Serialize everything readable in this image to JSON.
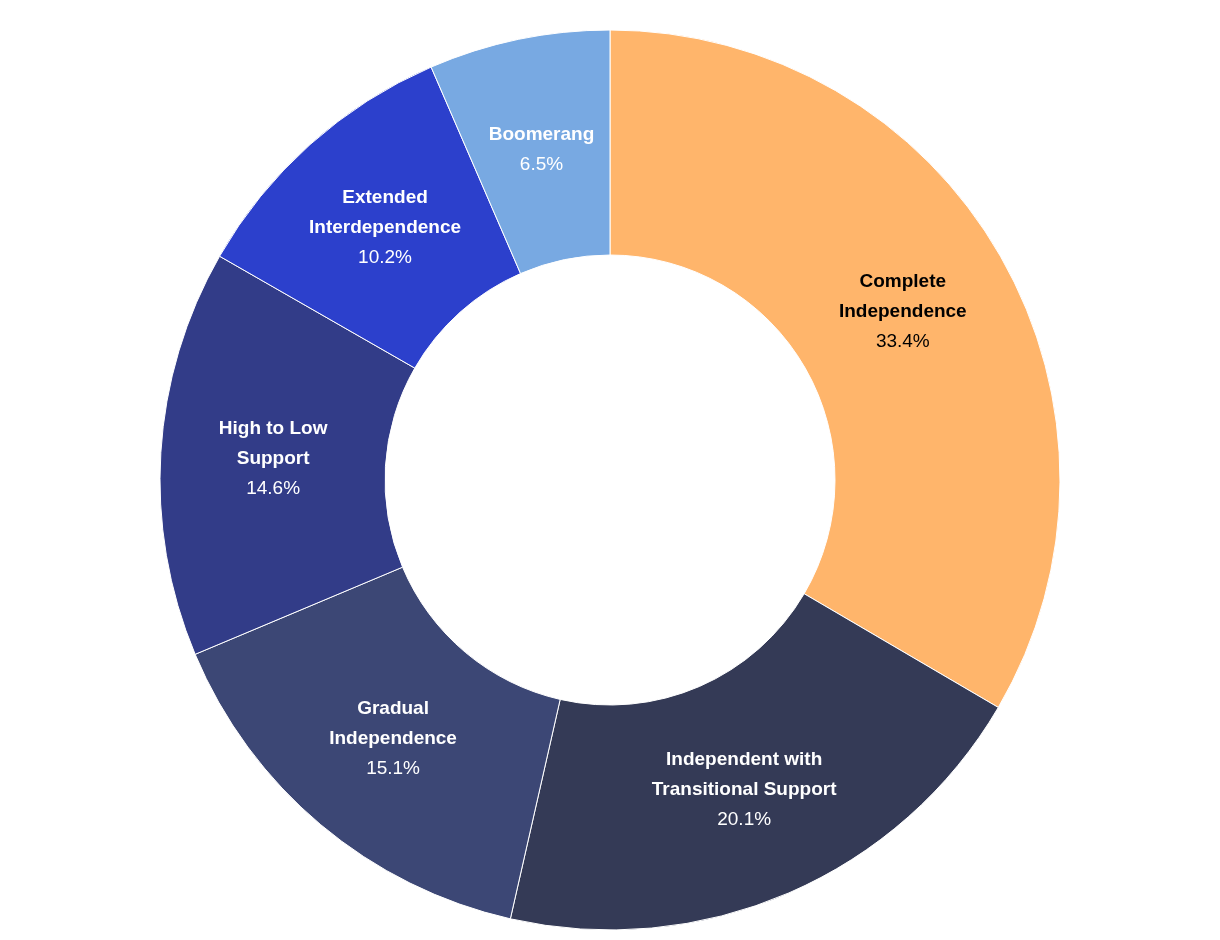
{
  "chart_data": {
    "type": "donut",
    "categories": [
      "Complete\nIndependence",
      "Independent with\nTransitional Support",
      "Gradual\nIndependence",
      "High to Low\nSupport",
      "Extended\nInterdependence",
      "Boomerang"
    ],
    "values": [
      33.4,
      20.1,
      15.1,
      14.6,
      10.2,
      6.5
    ],
    "colors": [
      "#ffb56b",
      "#343a56",
      "#3c4775",
      "#323c88",
      "#2c40cc",
      "#78a9e2"
    ],
    "value_labels": [
      "33.4%",
      "20.1%",
      "15.1%",
      "14.6%",
      "10.2%",
      "6.5%"
    ]
  }
}
